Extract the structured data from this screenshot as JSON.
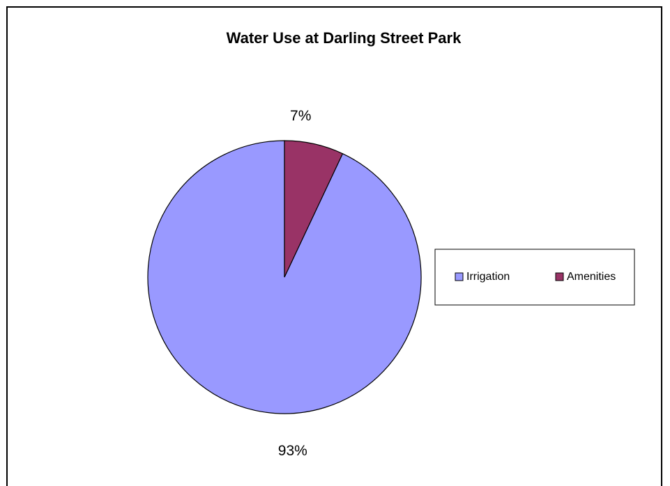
{
  "chart_data": {
    "type": "pie",
    "title": "Water Use at Darling Street Park",
    "categories": [
      "Irrigation",
      "Amenities"
    ],
    "values": [
      93,
      7
    ],
    "labels": [
      "93%",
      "7%"
    ],
    "colors": [
      "#9999ff",
      "#993366"
    ],
    "start_angle_deg": 0,
    "direction": "counterclockwise",
    "legend_position": "right",
    "grid": false
  }
}
